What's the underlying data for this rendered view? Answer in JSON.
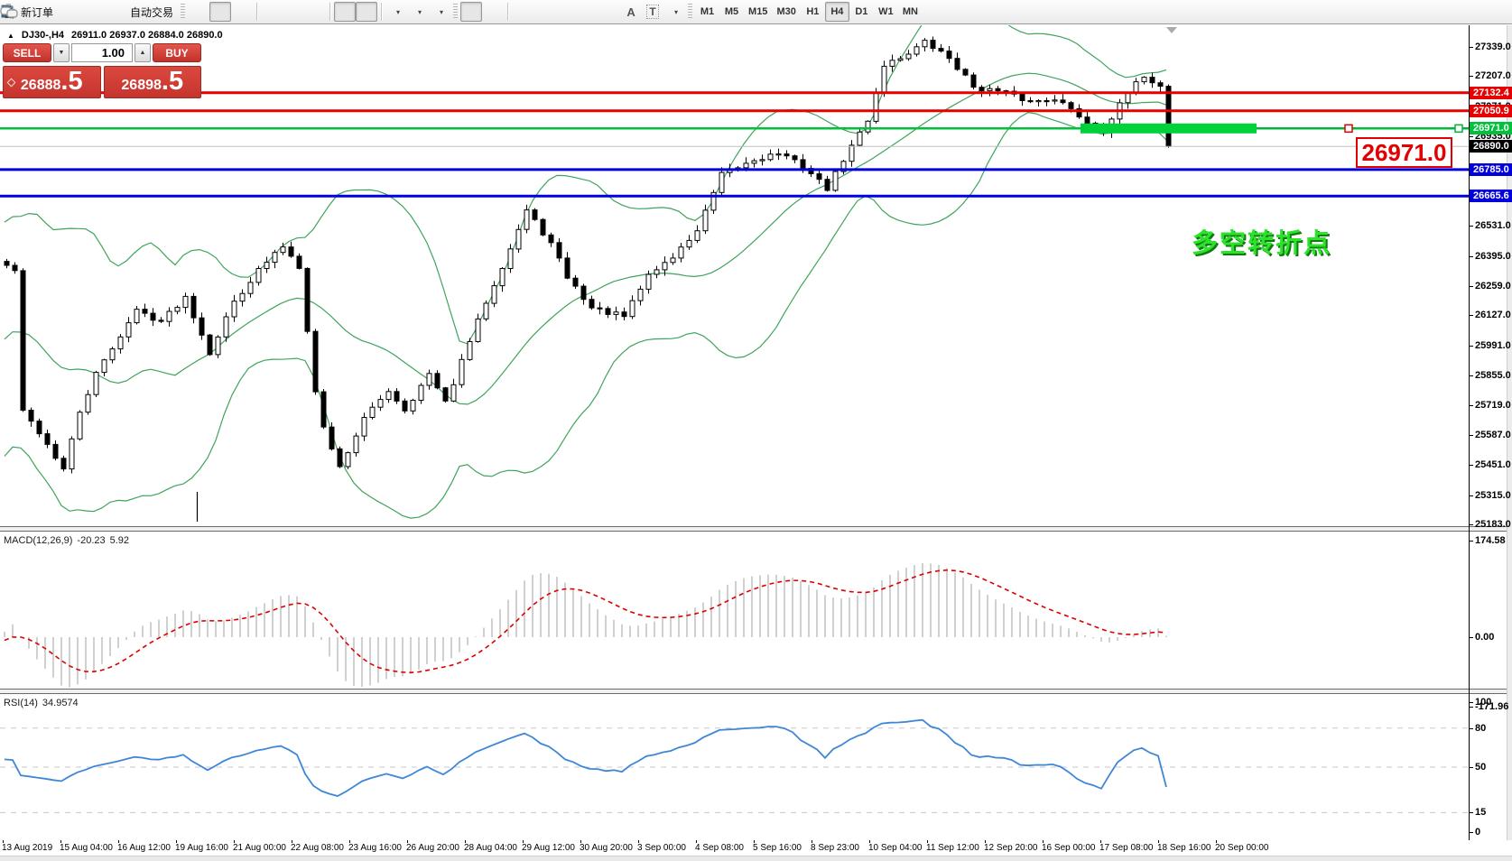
{
  "toolbar": {
    "new_order_label": "新订单",
    "auto_trading_label": "自动交易",
    "timeframes": [
      "M1",
      "M5",
      "M15",
      "M30",
      "H1",
      "H4",
      "D1",
      "W1",
      "MN"
    ],
    "active_timeframe": "H4",
    "text_tool_letter": "A",
    "label_tool_letter": "T"
  },
  "chart": {
    "collapse_icon": "▲",
    "symbol_header": "DJ30-,H4",
    "ohlc_values": "26911.0 26937.0 26884.0 26890.0",
    "trade_panel": {
      "sell_label": "SELL",
      "buy_label": "BUY",
      "volume": "1.00",
      "bid_main": "26888",
      "bid_frac": ".5",
      "ask_main": "26898",
      "ask_frac": ".5"
    },
    "annotation_price_box": "26971.0",
    "annotation_text": "多空转折点"
  },
  "macd_panel": {
    "name": "MACD(12,26,9)",
    "value": "-20.23",
    "signal_value": "5.92",
    "axis_labels": [
      "174.58",
      "0.00",
      "-171.96"
    ]
  },
  "rsi_panel": {
    "name": "RSI(14)",
    "value": "34.9574",
    "axis_labels": [
      "100",
      "80",
      "50",
      "15",
      "0"
    ]
  },
  "time_axis": {
    "labels": [
      "13 Aug 2019",
      "15 Aug 04:00",
      "16 Aug 12:00",
      "19 Aug 16:00",
      "21 Aug 00:00",
      "22 Aug 08:00",
      "23 Aug 16:00",
      "26 Aug 20:00",
      "28 Aug 04:00",
      "29 Aug 12:00",
      "30 Aug 20:00",
      "3 Sep 00:00",
      "4 Sep 08:00",
      "5 Sep 16:00",
      "8 Sep 23:00",
      "10 Sep 04:00",
      "11 Sep 12:00",
      "12 Sep 20:00",
      "16 Sep 00:00",
      "17 Sep 08:00",
      "18 Sep 16:00",
      "20 Sep 00:00"
    ]
  },
  "chart_data": {
    "type": "candlestick",
    "symbol": "DJ30-",
    "timeframe": "H4",
    "bars": 144,
    "ylim": [
      25175,
      27437
    ],
    "y_ticks": [
      27339,
      27207,
      27071,
      26935,
      26531,
      26395,
      26259,
      26127,
      25991,
      25855,
      25719,
      25587,
      25451,
      25315,
      25183
    ],
    "price_waypoints": [
      [
        0,
        26350
      ],
      [
        1,
        26330
      ],
      [
        2,
        25690
      ],
      [
        4,
        25600
      ],
      [
        7,
        25430
      ],
      [
        9,
        25690
      ],
      [
        11,
        25860
      ],
      [
        13,
        25980
      ],
      [
        16,
        26150
      ],
      [
        19,
        26100
      ],
      [
        22,
        26210
      ],
      [
        25,
        25960
      ],
      [
        28,
        26190
      ],
      [
        31,
        26330
      ],
      [
        34,
        26440
      ],
      [
        36,
        26350
      ],
      [
        38,
        25780
      ],
      [
        39,
        25620
      ],
      [
        41,
        25440
      ],
      [
        44,
        25660
      ],
      [
        47,
        25790
      ],
      [
        49,
        25700
      ],
      [
        52,
        25860
      ],
      [
        54,
        25730
      ],
      [
        57,
        26010
      ],
      [
        59,
        26190
      ],
      [
        62,
        26430
      ],
      [
        64,
        26600
      ],
      [
        67,
        26450
      ],
      [
        69,
        26300
      ],
      [
        72,
        26160
      ],
      [
        76,
        26120
      ],
      [
        79,
        26310
      ],
      [
        82,
        26390
      ],
      [
        85,
        26510
      ],
      [
        88,
        26760
      ],
      [
        92,
        26830
      ],
      [
        95,
        26860
      ],
      [
        98,
        26800
      ],
      [
        101,
        26700
      ],
      [
        103,
        26830
      ],
      [
        106,
        27010
      ],
      [
        108,
        27260
      ],
      [
        110,
        27290
      ],
      [
        113,
        27360
      ],
      [
        116,
        27290
      ],
      [
        119,
        27160
      ],
      [
        123,
        27130
      ],
      [
        126,
        27090
      ],
      [
        129,
        27110
      ],
      [
        133,
        27000
      ],
      [
        135,
        26965
      ],
      [
        138,
        27130
      ],
      [
        140,
        27210
      ],
      [
        142,
        27160
      ],
      [
        143,
        26890
      ]
    ],
    "horizontal_lines": [
      {
        "price": 27132.4,
        "color": "#e60000",
        "width": 3
      },
      {
        "price": 27050.9,
        "color": "#e60000",
        "width": 3
      },
      {
        "price": 26971.0,
        "color": "#00c23a",
        "width": 2.5
      },
      {
        "price": 26785.0,
        "color": "#0000dd",
        "width": 3
      },
      {
        "price": 26665.6,
        "color": "#0000dd",
        "width": 3
      }
    ],
    "current_price": 26890.0,
    "highlight_zone": {
      "price": 26971.0,
      "color": "#00d23c"
    },
    "bollinger": {
      "period": 20,
      "deviation": 2,
      "color": "#3fa45b"
    },
    "macd": {
      "fast": 12,
      "slow": 26,
      "signal": 9,
      "histogram_color": "#c4c4c4",
      "signal_color": "#dd0000",
      "axis": [
        174.58,
        0,
        -171.96
      ]
    },
    "rsi": {
      "period": 14,
      "color": "#3f86d8",
      "levels": [
        80,
        50,
        15
      ],
      "level_color": "#c8c8c8",
      "axis": [
        100,
        80,
        50,
        15,
        0
      ]
    },
    "colors": {
      "candle_up_fill": "#ffffff",
      "candle_down_fill": "#000000",
      "candle_stroke": "#000000"
    }
  }
}
